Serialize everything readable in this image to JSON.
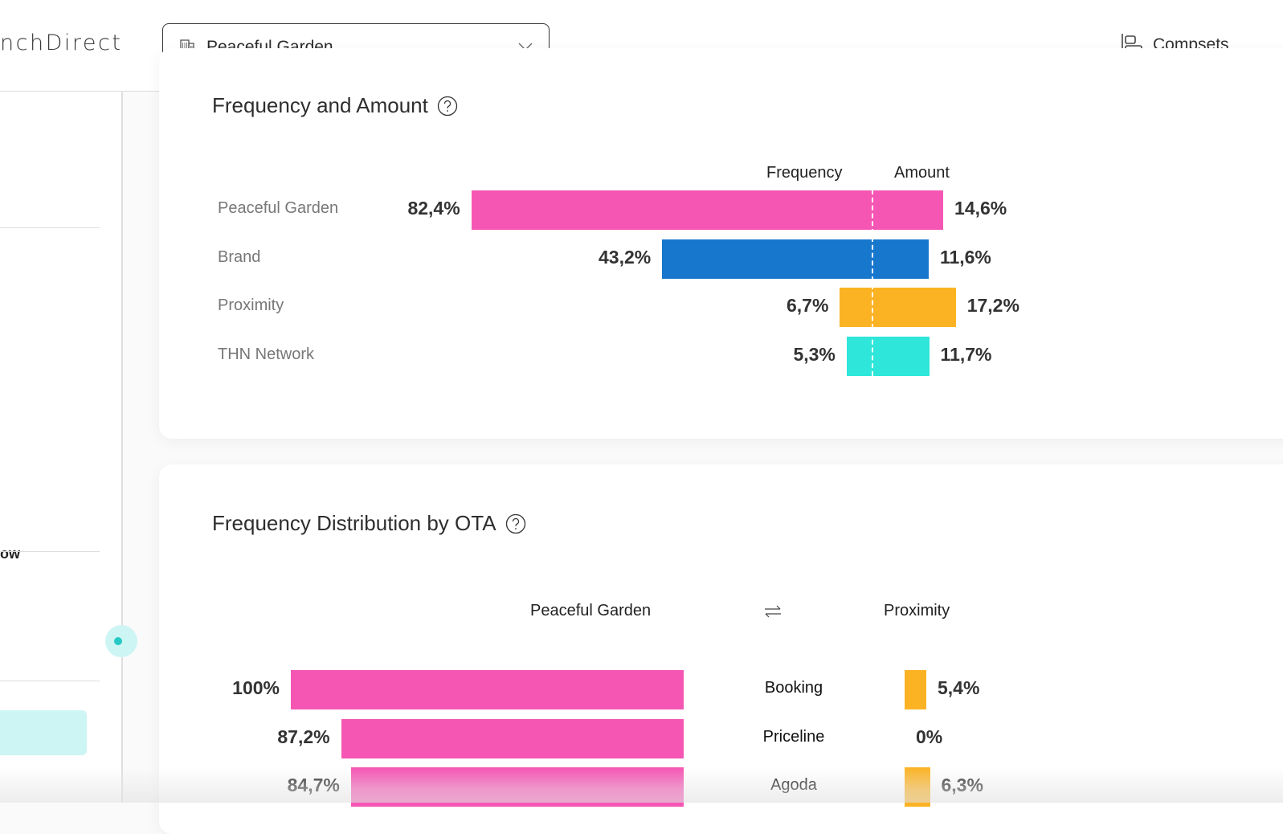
{
  "header": {
    "brand_partial": "nchDirect",
    "property_selector": {
      "selected": "Peaceful Garden",
      "icon": "building-icon"
    },
    "compsets_label": "Compsets",
    "compsets_icon": "align-left-bars-icon"
  },
  "sidebar": {
    "partial_text": "ow",
    "toggle_icon": "collapse-toggle-dot"
  },
  "colors": {
    "pink": "#f556b4",
    "blue": "#1777cd",
    "orange": "#fbb324",
    "teal": "#2ee6d9",
    "accent_light": "#cdf5f4",
    "accent": "#27c9c5"
  },
  "frequency_amount": {
    "title": "Frequency and Amount",
    "help_icon": "question-circle-icon",
    "col_frequency": "Frequency",
    "col_amount": "Amount"
  },
  "ota_distribution": {
    "title": "Frequency Distribution by OTA",
    "help_icon": "question-circle-icon",
    "left_label": "Peaceful Garden",
    "swap_icon": "swap-arrows-icon",
    "right_label": "Proximity"
  },
  "chart_data": [
    {
      "type": "bar",
      "title": "Frequency and Amount",
      "categories": [
        "Peaceful Garden",
        "Brand",
        "Proximity",
        "THN Network"
      ],
      "series": [
        {
          "name": "Frequency",
          "values": [
            82.4,
            43.2,
            6.7,
            5.3
          ],
          "labels": [
            "82,4%",
            "43,2%",
            "6,7%",
            "5,3%"
          ]
        },
        {
          "name": "Amount",
          "values": [
            14.6,
            11.6,
            17.2,
            11.7
          ],
          "labels": [
            "14,6%",
            "11,6%",
            "17,2%",
            "11,7%"
          ]
        }
      ],
      "colors": [
        "#f556b4",
        "#1777cd",
        "#fbb324",
        "#2ee6d9"
      ],
      "unit": "%",
      "orientation": "horizontal-diverging"
    },
    {
      "type": "bar",
      "title": "Frequency Distribution by OTA",
      "categories": [
        "Booking",
        "Priceline",
        "Agoda"
      ],
      "series": [
        {
          "name": "Peaceful Garden",
          "values": [
            100,
            87.2,
            84.7
          ],
          "labels": [
            "100%",
            "87,2%",
            "84,7%"
          ],
          "color": "#f556b4"
        },
        {
          "name": "Proximity",
          "values": [
            5.4,
            0,
            6.3
          ],
          "labels": [
            "5,4%",
            "0%",
            "6,3%"
          ],
          "color": "#fbb324"
        }
      ],
      "unit": "%",
      "orientation": "horizontal-butterfly"
    }
  ]
}
